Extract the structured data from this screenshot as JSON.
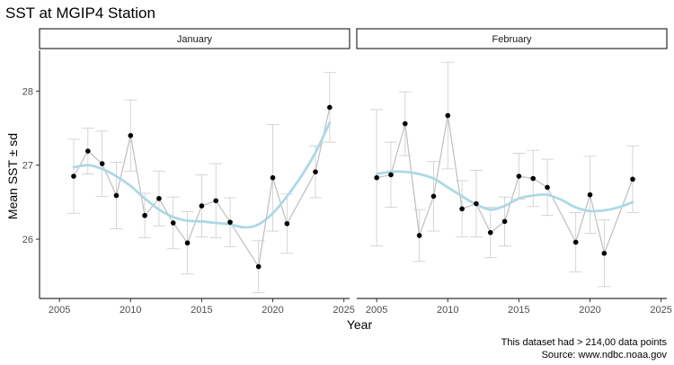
{
  "chart_data": {
    "type": "line",
    "title": "SST at MGIP4 Station",
    "xlabel": "Year",
    "ylabel": "Mean SST ± sd",
    "xlim": [
      2003.6,
      2025.4
    ],
    "ylim": [
      25.2,
      28.55
    ],
    "x_ticks": [
      2005,
      2010,
      2015,
      2020,
      2025
    ],
    "y_ticks": [
      26,
      27,
      28
    ],
    "grid": false,
    "caption_lines": [
      "This dataset had > 214,00 data points",
      "Source: www.ndbc.noaa.gov"
    ],
    "colors": {
      "line": "#bebebe",
      "error_bar": "#cccccc",
      "point": "#000000",
      "smooth": "#add8e6"
    },
    "panels": [
      {
        "label": "January",
        "points": [
          {
            "x": 2006,
            "y": 26.85,
            "sd": 0.5
          },
          {
            "x": 2007,
            "y": 27.19,
            "sd": 0.31
          },
          {
            "x": 2008,
            "y": 27.02,
            "sd": 0.44
          },
          {
            "x": 2009,
            "y": 26.59,
            "sd": 0.45
          },
          {
            "x": 2010,
            "y": 27.4,
            "sd": 0.48
          },
          {
            "x": 2011,
            "y": 26.32,
            "sd": 0.3
          },
          {
            "x": 2012,
            "y": 26.55,
            "sd": 0.37
          },
          {
            "x": 2013,
            "y": 26.22,
            "sd": 0.35
          },
          {
            "x": 2014,
            "y": 25.95,
            "sd": 0.42
          },
          {
            "x": 2015,
            "y": 26.45,
            "sd": 0.42
          },
          {
            "x": 2016,
            "y": 26.52,
            "sd": 0.5
          },
          {
            "x": 2017,
            "y": 26.23,
            "sd": 0.33
          },
          {
            "x": 2019,
            "y": 25.63,
            "sd": 0.35
          },
          {
            "x": 2020,
            "y": 26.83,
            "sd": 0.72
          },
          {
            "x": 2021,
            "y": 26.21,
            "sd": 0.4
          },
          {
            "x": 2023,
            "y": 26.91,
            "sd": 0.35
          },
          {
            "x": 2024,
            "y": 27.78,
            "sd": 0.47
          }
        ],
        "smooth": [
          {
            "x": 2006,
            "y": 26.97
          },
          {
            "x": 2007,
            "y": 27.0
          },
          {
            "x": 2008,
            "y": 26.95
          },
          {
            "x": 2009,
            "y": 26.85
          },
          {
            "x": 2010,
            "y": 26.72
          },
          {
            "x": 2011,
            "y": 26.55
          },
          {
            "x": 2012,
            "y": 26.4
          },
          {
            "x": 2013,
            "y": 26.3
          },
          {
            "x": 2014,
            "y": 26.25
          },
          {
            "x": 2015,
            "y": 26.24
          },
          {
            "x": 2016,
            "y": 26.22
          },
          {
            "x": 2017,
            "y": 26.2
          },
          {
            "x": 2018,
            "y": 26.16
          },
          {
            "x": 2019,
            "y": 26.2
          },
          {
            "x": 2020,
            "y": 26.35
          },
          {
            "x": 2021,
            "y": 26.58
          },
          {
            "x": 2022,
            "y": 26.85
          },
          {
            "x": 2023,
            "y": 27.17
          },
          {
            "x": 2024,
            "y": 27.57
          }
        ]
      },
      {
        "label": "February",
        "points": [
          {
            "x": 2005,
            "y": 26.83,
            "sd": 0.92
          },
          {
            "x": 2006,
            "y": 26.87,
            "sd": 0.44
          },
          {
            "x": 2007,
            "y": 27.56,
            "sd": 0.43
          },
          {
            "x": 2008,
            "y": 26.05,
            "sd": 0.35
          },
          {
            "x": 2009,
            "y": 26.58,
            "sd": 0.47
          },
          {
            "x": 2010,
            "y": 27.67,
            "sd": 0.72
          },
          {
            "x": 2011,
            "y": 26.41,
            "sd": 0.38
          },
          {
            "x": 2012,
            "y": 26.48,
            "sd": 0.45
          },
          {
            "x": 2013,
            "y": 26.09,
            "sd": 0.34
          },
          {
            "x": 2014,
            "y": 26.24,
            "sd": 0.33
          },
          {
            "x": 2015,
            "y": 26.85,
            "sd": 0.31
          },
          {
            "x": 2016,
            "y": 26.82,
            "sd": 0.38
          },
          {
            "x": 2017,
            "y": 26.7,
            "sd": 0.38
          },
          {
            "x": 2019,
            "y": 25.96,
            "sd": 0.4
          },
          {
            "x": 2020,
            "y": 26.6,
            "sd": 0.52
          },
          {
            "x": 2021,
            "y": 25.81,
            "sd": 0.45
          },
          {
            "x": 2023,
            "y": 26.81,
            "sd": 0.45
          }
        ],
        "smooth": [
          {
            "x": 2005,
            "y": 26.88
          },
          {
            "x": 2006,
            "y": 26.91
          },
          {
            "x": 2007,
            "y": 26.91
          },
          {
            "x": 2008,
            "y": 26.88
          },
          {
            "x": 2009,
            "y": 26.82
          },
          {
            "x": 2010,
            "y": 26.7
          },
          {
            "x": 2011,
            "y": 26.58
          },
          {
            "x": 2012,
            "y": 26.47
          },
          {
            "x": 2013,
            "y": 26.4
          },
          {
            "x": 2014,
            "y": 26.45
          },
          {
            "x": 2015,
            "y": 26.55
          },
          {
            "x": 2016,
            "y": 26.59
          },
          {
            "x": 2017,
            "y": 26.6
          },
          {
            "x": 2018,
            "y": 26.53
          },
          {
            "x": 2019,
            "y": 26.43
          },
          {
            "x": 2020,
            "y": 26.38
          },
          {
            "x": 2021,
            "y": 26.39
          },
          {
            "x": 2022,
            "y": 26.43
          },
          {
            "x": 2023,
            "y": 26.5
          }
        ]
      }
    ]
  }
}
